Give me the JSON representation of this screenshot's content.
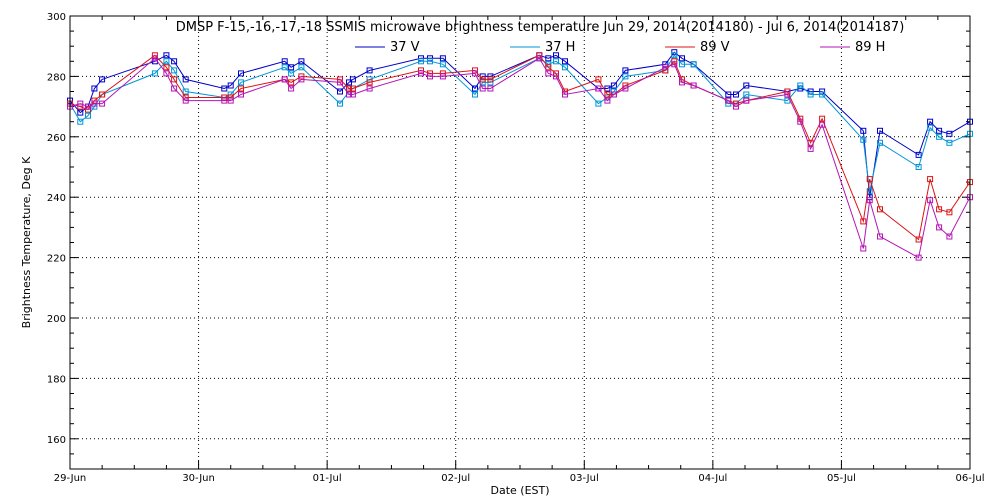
{
  "chart_data": {
    "type": "line",
    "title": "DMSP F-15,-16,-17,-18 SSMIS microwave brightness temperature Jun 29, 2014(2014180) - Jul  6, 2014(2014187)",
    "xlabel": "Date (EST)",
    "ylabel": "Brightness Temperature, Deg K",
    "x_tick_labels": [
      "29-Jun",
      "30-Jun",
      "01-Jul",
      "02-Jul",
      "03-Jul",
      "04-Jul",
      "05-Jul",
      "06-Jul"
    ],
    "xlim": [
      0,
      7
    ],
    "ylim": [
      150,
      300
    ],
    "y_ticks": [
      160,
      180,
      200,
      220,
      240,
      260,
      280,
      300
    ],
    "grid": true,
    "legend_position": "top",
    "series": [
      {
        "name": "37 V",
        "color": "#0000c8",
        "points": [
          [
            0.0,
            272
          ],
          [
            0.08,
            268
          ],
          [
            0.14,
            270
          ],
          [
            0.19,
            276
          ],
          [
            0.25,
            279
          ],
          [
            0.66,
            285
          ],
          [
            0.75,
            287
          ],
          [
            0.81,
            285
          ],
          [
            0.9,
            279
          ],
          [
            1.2,
            276
          ],
          [
            1.25,
            277
          ],
          [
            1.33,
            281
          ],
          [
            1.67,
            285
          ],
          [
            1.72,
            283
          ],
          [
            1.8,
            285
          ],
          [
            2.1,
            275
          ],
          [
            2.17,
            278
          ],
          [
            2.2,
            279
          ],
          [
            2.33,
            282
          ],
          [
            2.73,
            286
          ],
          [
            2.8,
            286
          ],
          [
            2.9,
            286
          ],
          [
            3.15,
            276
          ],
          [
            3.21,
            280
          ],
          [
            3.27,
            280
          ],
          [
            3.65,
            287
          ],
          [
            3.72,
            286
          ],
          [
            3.78,
            287
          ],
          [
            3.85,
            285
          ],
          [
            4.11,
            276
          ],
          [
            4.18,
            276
          ],
          [
            4.23,
            277
          ],
          [
            4.32,
            282
          ],
          [
            4.63,
            284
          ],
          [
            4.7,
            288
          ],
          [
            4.76,
            286
          ],
          [
            4.85,
            284
          ],
          [
            5.12,
            274
          ],
          [
            5.18,
            274
          ],
          [
            5.26,
            277
          ],
          [
            5.58,
            275
          ],
          [
            5.68,
            276
          ],
          [
            5.76,
            275
          ],
          [
            5.85,
            275
          ],
          [
            6.17,
            262
          ],
          [
            6.22,
            240
          ],
          [
            6.3,
            262
          ],
          [
            6.6,
            254
          ],
          [
            6.69,
            265
          ],
          [
            6.76,
            262
          ],
          [
            6.84,
            261
          ],
          [
            7.0,
            265
          ]
        ]
      },
      {
        "name": "37 H",
        "color": "#0096d7",
        "points": [
          [
            0.0,
            271
          ],
          [
            0.08,
            265
          ],
          [
            0.14,
            267
          ],
          [
            0.19,
            270
          ],
          [
            0.25,
            274
          ],
          [
            0.66,
            281
          ],
          [
            0.75,
            285
          ],
          [
            0.81,
            282
          ],
          [
            0.9,
            275
          ],
          [
            1.2,
            273
          ],
          [
            1.25,
            274
          ],
          [
            1.33,
            278
          ],
          [
            1.67,
            283
          ],
          [
            1.72,
            281
          ],
          [
            1.8,
            283
          ],
          [
            2.1,
            271
          ],
          [
            2.17,
            275
          ],
          [
            2.2,
            276
          ],
          [
            2.33,
            279
          ],
          [
            2.73,
            285
          ],
          [
            2.8,
            285
          ],
          [
            2.9,
            284
          ],
          [
            3.15,
            274
          ],
          [
            3.21,
            278
          ],
          [
            3.27,
            278
          ],
          [
            3.65,
            286
          ],
          [
            3.72,
            284
          ],
          [
            3.78,
            285
          ],
          [
            3.85,
            283
          ],
          [
            4.11,
            271
          ],
          [
            4.18,
            273
          ],
          [
            4.23,
            275
          ],
          [
            4.32,
            280
          ],
          [
            4.63,
            282
          ],
          [
            4.7,
            287
          ],
          [
            4.76,
            284
          ],
          [
            4.85,
            284
          ],
          [
            5.12,
            271
          ],
          [
            5.18,
            271
          ],
          [
            5.26,
            274
          ],
          [
            5.58,
            272
          ],
          [
            5.68,
            277
          ],
          [
            5.76,
            274
          ],
          [
            5.85,
            274
          ],
          [
            6.17,
            259
          ],
          [
            6.22,
            242
          ],
          [
            6.3,
            258
          ],
          [
            6.6,
            250
          ],
          [
            6.69,
            263
          ],
          [
            6.76,
            260
          ],
          [
            6.84,
            258
          ],
          [
            7.0,
            261
          ]
        ]
      },
      {
        "name": "89 V",
        "color": "#dc1414",
        "points": [
          [
            0.0,
            271
          ],
          [
            0.08,
            270
          ],
          [
            0.14,
            269
          ],
          [
            0.19,
            272
          ],
          [
            0.25,
            274
          ],
          [
            0.66,
            287
          ],
          [
            0.75,
            283
          ],
          [
            0.81,
            279
          ],
          [
            0.9,
            273
          ],
          [
            1.2,
            273
          ],
          [
            1.25,
            273
          ],
          [
            1.33,
            276
          ],
          [
            1.67,
            279
          ],
          [
            1.72,
            278
          ],
          [
            1.8,
            280
          ],
          [
            2.1,
            279
          ],
          [
            2.17,
            276
          ],
          [
            2.2,
            276
          ],
          [
            2.33,
            278
          ],
          [
            2.73,
            282
          ],
          [
            2.8,
            281
          ],
          [
            2.9,
            281
          ],
          [
            3.15,
            282
          ],
          [
            3.21,
            279
          ],
          [
            3.27,
            279
          ],
          [
            3.65,
            287
          ],
          [
            3.72,
            283
          ],
          [
            3.78,
            281
          ],
          [
            3.85,
            275
          ],
          [
            4.11,
            279
          ],
          [
            4.18,
            274
          ],
          [
            4.23,
            274
          ],
          [
            4.32,
            277
          ],
          [
            4.63,
            282
          ],
          [
            4.7,
            285
          ],
          [
            4.76,
            279
          ],
          [
            4.85,
            277
          ],
          [
            5.12,
            272
          ],
          [
            5.18,
            271
          ],
          [
            5.26,
            272
          ],
          [
            5.58,
            275
          ],
          [
            5.68,
            266
          ],
          [
            5.76,
            258
          ],
          [
            5.85,
            266
          ],
          [
            6.17,
            232
          ],
          [
            6.22,
            246
          ],
          [
            6.3,
            236
          ],
          [
            6.6,
            226
          ],
          [
            6.69,
            246
          ],
          [
            6.76,
            236
          ],
          [
            6.84,
            235
          ],
          [
            7.0,
            245
          ]
        ]
      },
      {
        "name": "89 H",
        "color": "#b414b4",
        "points": [
          [
            0.0,
            270
          ],
          [
            0.08,
            271
          ],
          [
            0.14,
            270
          ],
          [
            0.19,
            271
          ],
          [
            0.25,
            271
          ],
          [
            0.66,
            286
          ],
          [
            0.75,
            281
          ],
          [
            0.81,
            276
          ],
          [
            0.9,
            272
          ],
          [
            1.2,
            272
          ],
          [
            1.25,
            272
          ],
          [
            1.33,
            274
          ],
          [
            1.67,
            279
          ],
          [
            1.72,
            276
          ],
          [
            1.8,
            279
          ],
          [
            2.1,
            278
          ],
          [
            2.17,
            274
          ],
          [
            2.2,
            274
          ],
          [
            2.33,
            276
          ],
          [
            2.73,
            281
          ],
          [
            2.8,
            280
          ],
          [
            2.9,
            280
          ],
          [
            3.15,
            281
          ],
          [
            3.21,
            276
          ],
          [
            3.27,
            276
          ],
          [
            3.65,
            286
          ],
          [
            3.72,
            281
          ],
          [
            3.78,
            280
          ],
          [
            3.85,
            274
          ],
          [
            4.11,
            276
          ],
          [
            4.18,
            272
          ],
          [
            4.23,
            274
          ],
          [
            4.32,
            276
          ],
          [
            4.63,
            283
          ],
          [
            4.7,
            284
          ],
          [
            4.76,
            278
          ],
          [
            4.85,
            277
          ],
          [
            5.12,
            272
          ],
          [
            5.18,
            270
          ],
          [
            5.26,
            272
          ],
          [
            5.58,
            274
          ],
          [
            5.68,
            265
          ],
          [
            5.76,
            256
          ],
          [
            5.85,
            264
          ],
          [
            6.17,
            223
          ],
          [
            6.22,
            239
          ],
          [
            6.3,
            227
          ],
          [
            6.6,
            220
          ],
          [
            6.69,
            239
          ],
          [
            6.76,
            230
          ],
          [
            6.84,
            227
          ],
          [
            7.0,
            240
          ]
        ]
      }
    ]
  }
}
